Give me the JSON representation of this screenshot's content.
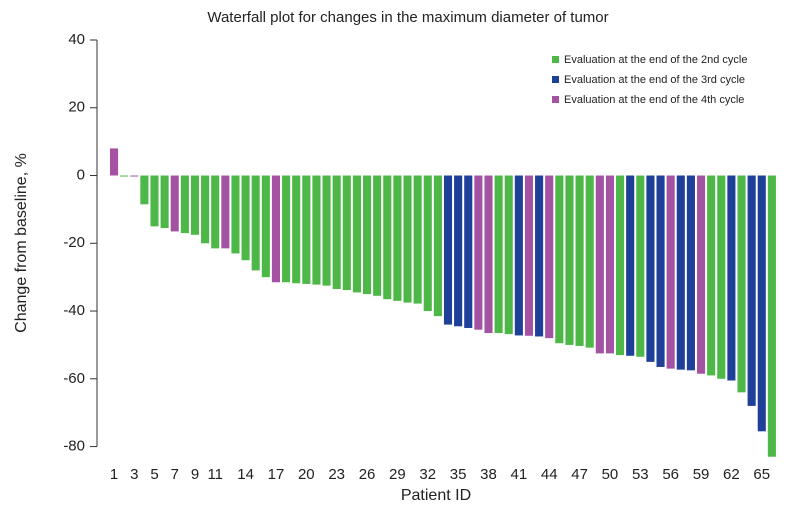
{
  "chart_data": {
    "type": "bar",
    "title": "Waterfall plot for changes in the maximum diameter of tumor",
    "xlabel": "Patient ID",
    "ylabel": "Change from baseline, %",
    "x": [
      1,
      2,
      3,
      4,
      5,
      6,
      7,
      8,
      9,
      10,
      11,
      12,
      13,
      14,
      15,
      16,
      17,
      18,
      19,
      20,
      21,
      22,
      23,
      24,
      25,
      26,
      27,
      28,
      29,
      30,
      31,
      32,
      33,
      34,
      35,
      36,
      37,
      38,
      39,
      40,
      41,
      42,
      43,
      44,
      45,
      46,
      47,
      48,
      49,
      50,
      51,
      52,
      53,
      54,
      55,
      56,
      57,
      58,
      59,
      60,
      61,
      62,
      63,
      64,
      65,
      66
    ],
    "xlim": [
      0,
      67
    ],
    "xticks": [
      1,
      3,
      5,
      7,
      9,
      11,
      14,
      17,
      20,
      23,
      26,
      29,
      32,
      35,
      38,
      41,
      44,
      47,
      50,
      53,
      56,
      59,
      62,
      65
    ],
    "ylim": [
      -85,
      40
    ],
    "yticks": [
      40,
      20,
      0,
      -20,
      -40,
      -60,
      -80
    ],
    "legend": "upper right",
    "series": [
      {
        "name": "Evaluation at the end of the 2nd cycle",
        "color": "#4db848",
        "values": [
          null,
          -0.3,
          null,
          -8.5,
          -15,
          -15.5,
          null,
          -17,
          -17.5,
          -20,
          -21.5,
          null,
          -23,
          -25,
          -28,
          -30,
          null,
          -31.5,
          -31.8,
          -32,
          -32.2,
          -32.5,
          -33.5,
          -33.8,
          -34.5,
          -35,
          -35.5,
          -36.5,
          -37,
          -37.5,
          -37.8,
          -40,
          -41.5,
          null,
          null,
          null,
          null,
          null,
          -46.5,
          -46.8,
          null,
          null,
          null,
          null,
          -49.5,
          -50,
          -50.3,
          -50.8,
          null,
          null,
          -53,
          null,
          -53.5,
          null,
          null,
          null,
          null,
          null,
          null,
          -59,
          -60,
          null,
          -64,
          null,
          null,
          -83
        ]
      },
      {
        "name": "Evaluation at the end of the 3rd cycle",
        "color": "#1f4099",
        "values": [
          null,
          null,
          null,
          null,
          null,
          null,
          null,
          null,
          null,
          null,
          null,
          null,
          null,
          null,
          null,
          null,
          null,
          null,
          null,
          null,
          null,
          null,
          null,
          null,
          null,
          null,
          null,
          null,
          null,
          null,
          null,
          null,
          null,
          -44,
          -44.5,
          -45,
          null,
          null,
          null,
          null,
          -47.2,
          null,
          -47.5,
          null,
          null,
          null,
          null,
          null,
          null,
          null,
          null,
          -53.2,
          null,
          -55,
          -56.5,
          null,
          -57.3,
          -57.5,
          null,
          null,
          null,
          -60.5,
          null,
          -68,
          -75.5,
          null
        ]
      },
      {
        "name": "Evaluation at the end of the 4th cycle",
        "color": "#a452a2",
        "values": [
          8,
          null,
          -0.3,
          null,
          null,
          null,
          -16.5,
          null,
          null,
          null,
          null,
          -21.5,
          null,
          null,
          null,
          null,
          -31.5,
          null,
          null,
          null,
          null,
          null,
          null,
          null,
          null,
          null,
          null,
          null,
          null,
          null,
          null,
          null,
          null,
          null,
          null,
          null,
          -45.5,
          -46.5,
          null,
          null,
          null,
          -47.3,
          null,
          -48,
          null,
          null,
          null,
          null,
          -52.5,
          -52.5,
          null,
          null,
          null,
          null,
          null,
          -57,
          null,
          null,
          -58.5,
          null,
          null,
          null,
          null,
          null,
          null,
          null
        ]
      }
    ]
  }
}
